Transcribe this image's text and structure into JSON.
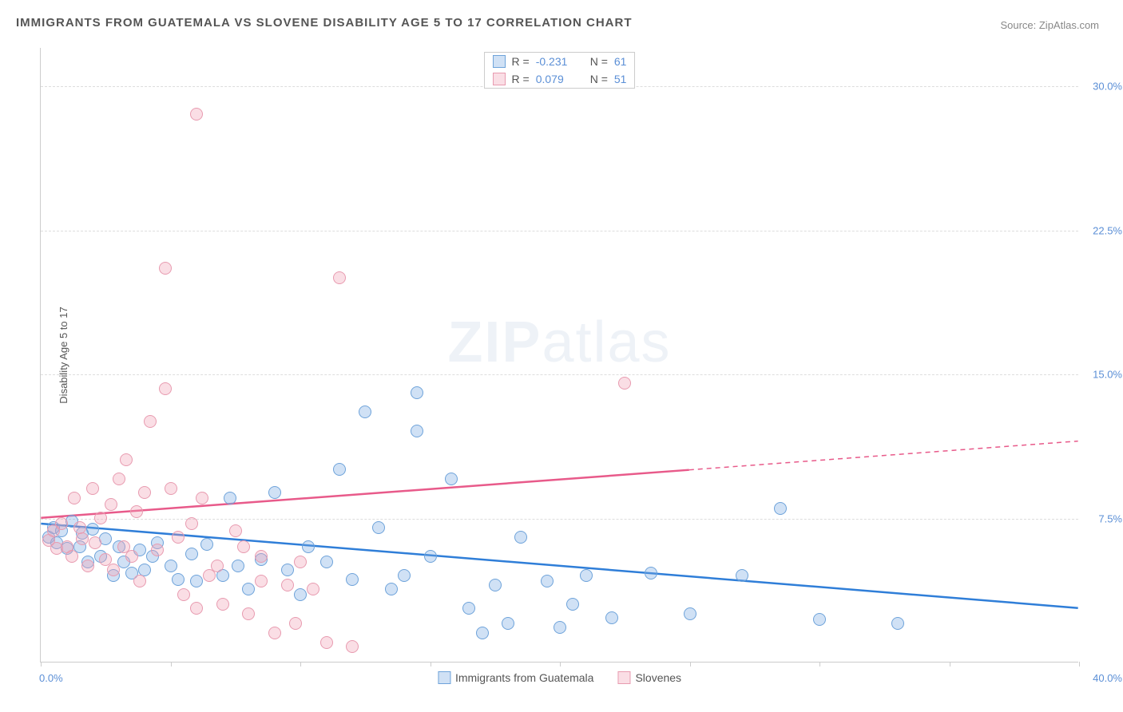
{
  "title": "IMMIGRANTS FROM GUATEMALA VS SLOVENE DISABILITY AGE 5 TO 17 CORRELATION CHART",
  "source": "Source: ZipAtlas.com",
  "watermark_bold": "ZIP",
  "watermark_light": "atlas",
  "ylabel": "Disability Age 5 to 17",
  "chart": {
    "type": "scatter",
    "xlim": [
      0,
      40
    ],
    "ylim": [
      0,
      32
    ],
    "xticks": [
      0,
      5,
      10,
      15,
      20,
      25,
      30,
      35,
      40
    ],
    "yticks": [
      7.5,
      15.0,
      22.5,
      30.0
    ],
    "ytick_labels": [
      "7.5%",
      "15.0%",
      "22.5%",
      "30.0%"
    ],
    "xlimit_labels": {
      "min": "0.0%",
      "max": "40.0%"
    },
    "background_color": "#ffffff",
    "grid_color": "#dddddd",
    "series": [
      {
        "name": "Immigrants from Guatemala",
        "fill": "rgba(120,170,225,0.35)",
        "stroke": "#6ea3da",
        "trend_color": "#2f7ed8",
        "r": "-0.231",
        "n": "61",
        "trend": {
          "x1": 0,
          "y1": 7.2,
          "x2": 40,
          "y2": 2.8
        },
        "trend_dash_after_x": 40,
        "points": [
          [
            0.3,
            6.5
          ],
          [
            0.5,
            7.0
          ],
          [
            0.6,
            6.2
          ],
          [
            0.8,
            6.8
          ],
          [
            1.0,
            5.9
          ],
          [
            1.2,
            7.3
          ],
          [
            1.5,
            6.0
          ],
          [
            1.6,
            6.7
          ],
          [
            1.8,
            5.2
          ],
          [
            2.0,
            6.9
          ],
          [
            2.3,
            5.5
          ],
          [
            2.5,
            6.4
          ],
          [
            2.8,
            4.5
          ],
          [
            3.0,
            6.0
          ],
          [
            3.2,
            5.2
          ],
          [
            3.5,
            4.6
          ],
          [
            3.8,
            5.8
          ],
          [
            4.0,
            4.8
          ],
          [
            4.3,
            5.5
          ],
          [
            4.5,
            6.2
          ],
          [
            5.0,
            5.0
          ],
          [
            5.3,
            4.3
          ],
          [
            5.8,
            5.6
          ],
          [
            6.0,
            4.2
          ],
          [
            6.4,
            6.1
          ],
          [
            7.0,
            4.5
          ],
          [
            7.3,
            8.5
          ],
          [
            7.6,
            5.0
          ],
          [
            8.0,
            3.8
          ],
          [
            8.5,
            5.3
          ],
          [
            9.0,
            8.8
          ],
          [
            9.5,
            4.8
          ],
          [
            10.0,
            3.5
          ],
          [
            10.3,
            6.0
          ],
          [
            11.0,
            5.2
          ],
          [
            11.5,
            10.0
          ],
          [
            12.0,
            4.3
          ],
          [
            12.5,
            13.0
          ],
          [
            13.0,
            7.0
          ],
          [
            13.5,
            3.8
          ],
          [
            14.0,
            4.5
          ],
          [
            14.5,
            12.0
          ],
          [
            15.0,
            5.5
          ],
          [
            15.8,
            9.5
          ],
          [
            16.5,
            2.8
          ],
          [
            17.0,
            1.5
          ],
          [
            17.5,
            4.0
          ],
          [
            18.0,
            2.0
          ],
          [
            18.5,
            6.5
          ],
          [
            19.5,
            4.2
          ],
          [
            20.0,
            1.8
          ],
          [
            20.5,
            3.0
          ],
          [
            21.0,
            4.5
          ],
          [
            22.0,
            2.3
          ],
          [
            23.5,
            4.6
          ],
          [
            25.0,
            2.5
          ],
          [
            27.0,
            4.5
          ],
          [
            28.5,
            8.0
          ],
          [
            30.0,
            2.2
          ],
          [
            33.0,
            2.0
          ],
          [
            14.5,
            14.0
          ]
        ]
      },
      {
        "name": "Slovenes",
        "fill": "rgba(240,160,180,0.35)",
        "stroke": "#e89bb0",
        "trend_color": "#e85a8a",
        "r": "0.079",
        "n": "51",
        "trend": {
          "x1": 0,
          "y1": 7.5,
          "x2": 40,
          "y2": 11.5
        },
        "trend_dash_after_x": 25,
        "points": [
          [
            0.3,
            6.3
          ],
          [
            0.5,
            6.8
          ],
          [
            0.6,
            5.9
          ],
          [
            0.8,
            7.2
          ],
          [
            1.0,
            6.0
          ],
          [
            1.2,
            5.5
          ],
          [
            1.3,
            8.5
          ],
          [
            1.5,
            7.0
          ],
          [
            1.6,
            6.4
          ],
          [
            1.8,
            5.0
          ],
          [
            2.0,
            9.0
          ],
          [
            2.1,
            6.2
          ],
          [
            2.3,
            7.5
          ],
          [
            2.5,
            5.3
          ],
          [
            2.7,
            8.2
          ],
          [
            2.8,
            4.8
          ],
          [
            3.0,
            9.5
          ],
          [
            3.2,
            6.0
          ],
          [
            3.3,
            10.5
          ],
          [
            3.5,
            5.5
          ],
          [
            3.7,
            7.8
          ],
          [
            3.8,
            4.2
          ],
          [
            4.0,
            8.8
          ],
          [
            4.2,
            12.5
          ],
          [
            4.5,
            5.8
          ],
          [
            4.8,
            14.2
          ],
          [
            5.0,
            9.0
          ],
          [
            5.3,
            6.5
          ],
          [
            5.5,
            3.5
          ],
          [
            5.8,
            7.2
          ],
          [
            6.0,
            2.8
          ],
          [
            6.2,
            8.5
          ],
          [
            6.5,
            4.5
          ],
          [
            6.8,
            5.0
          ],
          [
            7.0,
            3.0
          ],
          [
            7.5,
            6.8
          ],
          [
            8.0,
            2.5
          ],
          [
            8.5,
            5.5
          ],
          [
            9.0,
            1.5
          ],
          [
            9.5,
            4.0
          ],
          [
            10.0,
            5.2
          ],
          [
            10.5,
            3.8
          ],
          [
            11.0,
            1.0
          ],
          [
            11.5,
            20.0
          ],
          [
            6.0,
            28.5
          ],
          [
            4.8,
            20.5
          ],
          [
            8.5,
            4.2
          ],
          [
            9.8,
            2.0
          ],
          [
            7.8,
            6.0
          ],
          [
            22.5,
            14.5
          ],
          [
            12.0,
            0.8
          ]
        ]
      }
    ]
  },
  "stats_legend": {
    "r_label": "R =",
    "n_label": "N ="
  },
  "bottom_legend": {
    "items": [
      "Immigrants from Guatemala",
      "Slovenes"
    ]
  }
}
